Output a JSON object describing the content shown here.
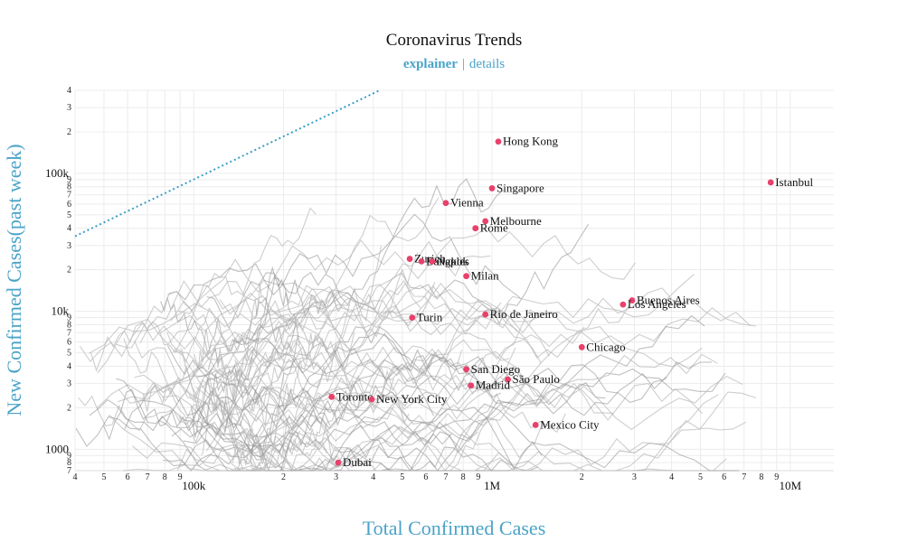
{
  "chart_data": {
    "type": "line",
    "title": "Coronavirus Trends",
    "subtitle_links": [
      "explainer",
      "details"
    ],
    "xlabel": "Total Confirmed Cases",
    "ylabel": "New Confirmed Cases(past week)",
    "x_scale": "log",
    "y_scale": "log",
    "xlim": [
      40000,
      14000000
    ],
    "ylim": [
      700,
      40000
    ],
    "x_major_ticks": [
      {
        "value": 100000,
        "label": "100k"
      },
      {
        "value": 1000000,
        "label": "1M"
      },
      {
        "value": 10000000,
        "label": "10M"
      }
    ],
    "x_minor_ticks": [
      {
        "value": 40000,
        "label": "4"
      },
      {
        "value": 50000,
        "label": "5"
      },
      {
        "value": 60000,
        "label": "6"
      },
      {
        "value": 70000,
        "label": "7"
      },
      {
        "value": 80000,
        "label": "8"
      },
      {
        "value": 90000,
        "label": "9"
      },
      {
        "value": 200000,
        "label": "2"
      },
      {
        "value": 300000,
        "label": "3"
      },
      {
        "value": 400000,
        "label": "4"
      },
      {
        "value": 500000,
        "label": "5"
      },
      {
        "value": 600000,
        "label": "6"
      },
      {
        "value": 700000,
        "label": "7"
      },
      {
        "value": 800000,
        "label": "8"
      },
      {
        "value": 900000,
        "label": "9"
      },
      {
        "value": 2000000,
        "label": "2"
      },
      {
        "value": 3000000,
        "label": "3"
      },
      {
        "value": 4000000,
        "label": "4"
      },
      {
        "value": 5000000,
        "label": "5"
      },
      {
        "value": 6000000,
        "label": "6"
      },
      {
        "value": 7000000,
        "label": "7"
      },
      {
        "value": 8000000,
        "label": "8"
      },
      {
        "value": 9000000,
        "label": "9"
      }
    ],
    "y_major_ticks": [
      {
        "value": 1000,
        "label": "1000"
      },
      {
        "value": 10000,
        "label": "10k"
      },
      {
        "value": 100000,
        "label": "100k"
      }
    ],
    "y_minor_ticks": [
      {
        "value": 700,
        "label": "7"
      },
      {
        "value": 800,
        "label": "8"
      },
      {
        "value": 900,
        "label": "9"
      },
      {
        "value": 2000,
        "label": "2"
      },
      {
        "value": 3000,
        "label": "3"
      },
      {
        "value": 4000,
        "label": "4"
      },
      {
        "value": 5000,
        "label": "5"
      },
      {
        "value": 6000,
        "label": "6"
      },
      {
        "value": 7000,
        "label": "7"
      },
      {
        "value": 8000,
        "label": "8"
      },
      {
        "value": 9000,
        "label": "9"
      },
      {
        "value": 20000,
        "label": "2"
      },
      {
        "value": 30000,
        "label": "3"
      },
      {
        "value": 40000,
        "label": "4"
      },
      {
        "value": 50000,
        "label": "5"
      },
      {
        "value": 60000,
        "label": "6"
      },
      {
        "value": 70000,
        "label": "7"
      },
      {
        "value": 80000,
        "label": "8"
      },
      {
        "value": 90000,
        "label": "9"
      },
      {
        "value": 200000,
        "label": "2"
      },
      {
        "value": 300000,
        "label": "3"
      },
      {
        "value": 400000,
        "label": "4"
      }
    ],
    "reference_line": {
      "style": "dotted",
      "color": "#3a9ec9",
      "x": [
        40000,
        420000
      ],
      "y": [
        35000,
        400000
      ]
    },
    "grid": true,
    "colors": {
      "city_point": "#e8416b",
      "trend_line": "#b9b9b9",
      "axis_label": "#4aa3c8"
    },
    "cities": [
      {
        "name": "Hong Kong",
        "x": 1050000,
        "y": 170000
      },
      {
        "name": "Istanbul",
        "x": 8600000,
        "y": 86000
      },
      {
        "name": "Singapore",
        "x": 1000000,
        "y": 78000
      },
      {
        "name": "Vienna",
        "x": 700000,
        "y": 61000
      },
      {
        "name": "Melbourne",
        "x": 950000,
        "y": 45000
      },
      {
        "name": "Rome",
        "x": 880000,
        "y": 40000
      },
      {
        "name": "Zurich",
        "x": 530000,
        "y": 24000
      },
      {
        "name": "Bangkok",
        "x": 580000,
        "y": 23000
      },
      {
        "name": "Naples",
        "x": 630000,
        "y": 23000
      },
      {
        "name": "Milan",
        "x": 820000,
        "y": 18000
      },
      {
        "name": "Buenos Aires",
        "x": 2950000,
        "y": 12000
      },
      {
        "name": "Los Angeles",
        "x": 2750000,
        "y": 11200
      },
      {
        "name": "Rio de Janeiro",
        "x": 950000,
        "y": 9500
      },
      {
        "name": "Turin",
        "x": 540000,
        "y": 9000
      },
      {
        "name": "Chicago",
        "x": 2000000,
        "y": 5500
      },
      {
        "name": "San Diego",
        "x": 820000,
        "y": 3800
      },
      {
        "name": "São Paulo",
        "x": 1130000,
        "y": 3200
      },
      {
        "name": "Madrid",
        "x": 850000,
        "y": 2900
      },
      {
        "name": "Toronto",
        "x": 290000,
        "y": 2400
      },
      {
        "name": "New York City",
        "x": 395000,
        "y": 2300
      },
      {
        "name": "Mexico City",
        "x": 1400000,
        "y": 1500
      },
      {
        "name": "Dubai",
        "x": 305000,
        "y": 800
      }
    ]
  }
}
